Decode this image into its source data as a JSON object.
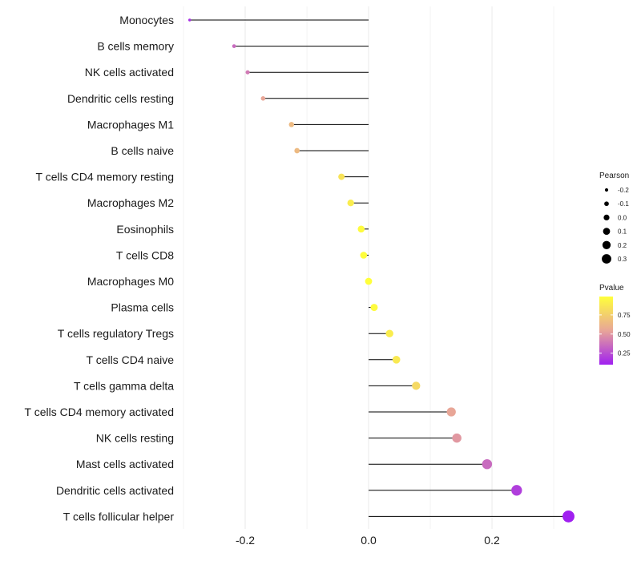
{
  "chart_data": {
    "type": "lollipop",
    "categories": [
      "Monocytes",
      "B cells memory",
      "NK cells activated",
      "Dendritic cells resting",
      "Macrophages M1",
      "B cells naive",
      "T cells CD4 memory resting",
      "Macrophages M2",
      "Eosinophils",
      "T cells CD8",
      "Macrophages M0",
      "Plasma cells",
      "T cells regulatory  Tregs ",
      "T cells CD4 naive",
      "T cells gamma delta",
      "T cells CD4 memory activated",
      "NK cells resting",
      "Mast cells activated",
      "Dendritic cells activated",
      "T cells follicular helper"
    ],
    "pearson": [
      -0.29,
      -0.218,
      -0.196,
      -0.171,
      -0.125,
      -0.116,
      -0.044,
      -0.029,
      -0.012,
      -0.008,
      0.0,
      0.009,
      0.034,
      0.045,
      0.077,
      0.134,
      0.143,
      0.192,
      0.24,
      0.324
    ],
    "pvalue": [
      0.15,
      0.35,
      0.4,
      0.55,
      0.65,
      0.65,
      0.85,
      0.9,
      0.97,
      0.98,
      0.99,
      0.97,
      0.9,
      0.88,
      0.8,
      0.55,
      0.5,
      0.35,
      0.2,
      0.05
    ],
    "x_ticks": [
      -0.2,
      0.0,
      0.2
    ],
    "x_tick_labels": [
      "-0.2",
      "0.0",
      "0.2"
    ],
    "xlim": [
      -0.3,
      0.335
    ],
    "xlabel": "",
    "ylabel": "",
    "legends": {
      "size_title": "Pearson",
      "size_values": [
        -0.2,
        -0.1,
        0.0,
        0.1,
        0.2,
        0.3
      ],
      "size_labels": [
        "-0.2",
        "-0.1",
        "0.0",
        "0.1",
        "0.2",
        "0.3"
      ],
      "color_title": "Pvalue",
      "color_values": [
        0.75,
        0.5,
        0.25
      ],
      "color_labels": [
        "0.75",
        "0.50",
        "0.25"
      ],
      "color_range": [
        0.1,
        0.99
      ],
      "color_low": "#a020f0",
      "color_mid": "#e8a598",
      "color_high": "#ffff3b"
    },
    "colors": {
      "grid": "#ebebeb",
      "segment": "#000000"
    }
  }
}
